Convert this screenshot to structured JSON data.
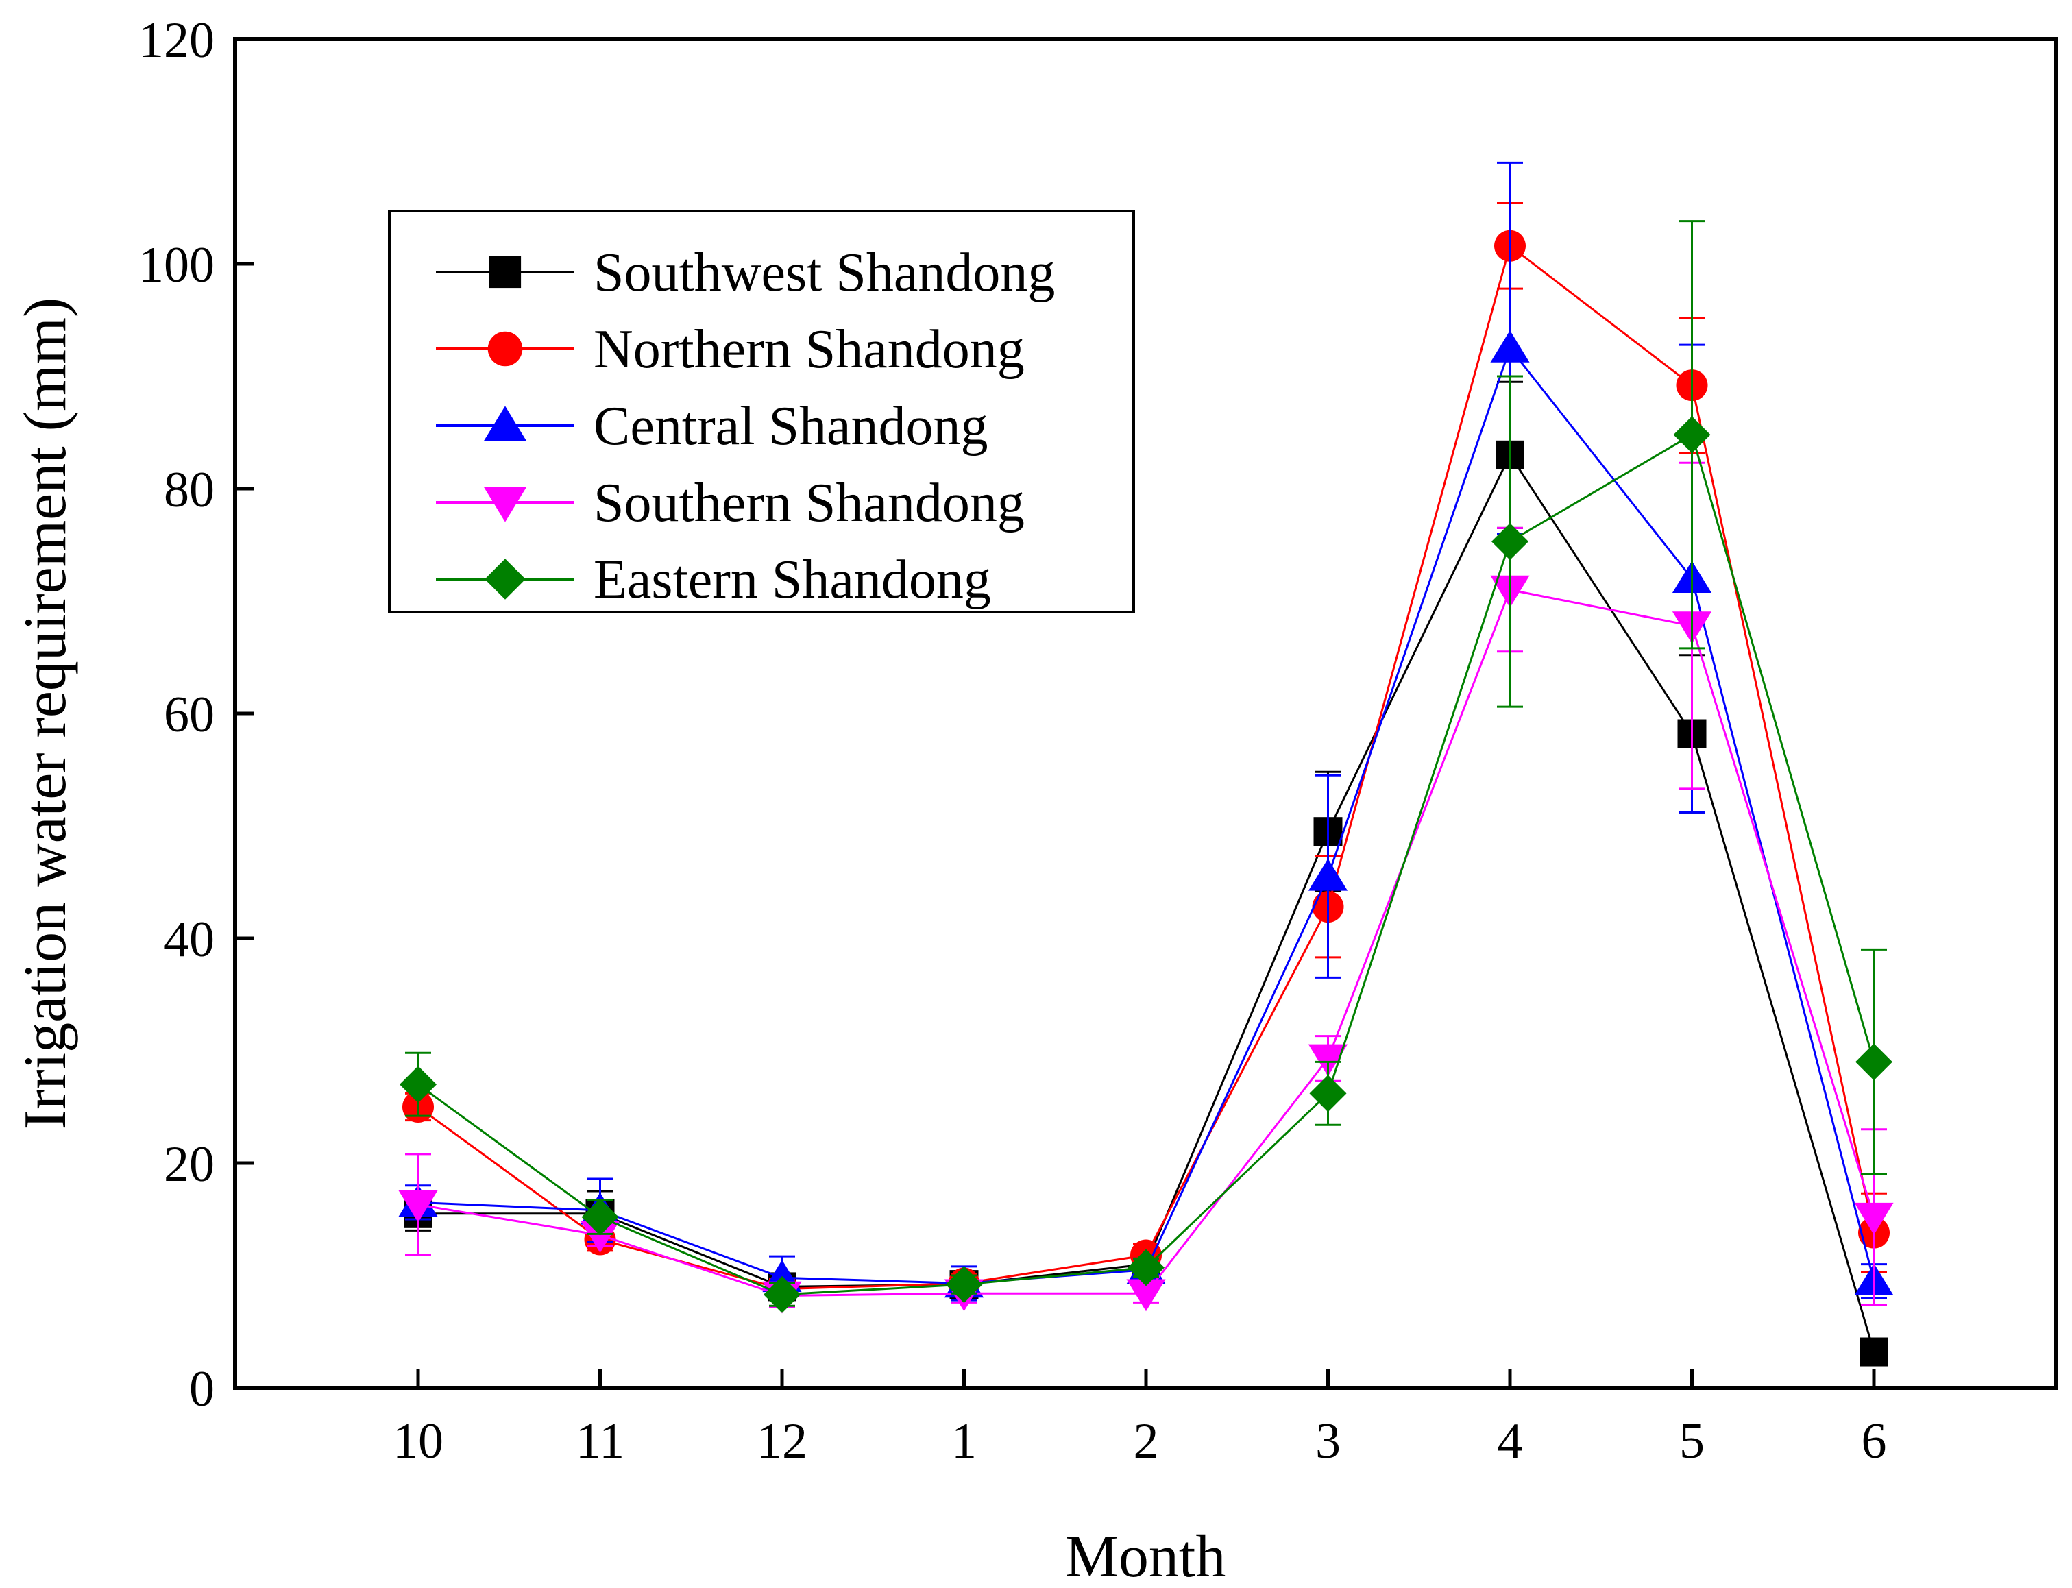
{
  "chart_data": {
    "type": "line",
    "title": "",
    "xlabel": "Month",
    "ylabel": "Irrigation water requirement (mm)",
    "categories": [
      "10",
      "11",
      "12",
      "1",
      "2",
      "3",
      "4",
      "5",
      "6"
    ],
    "ylim": [
      0,
      120
    ],
    "yticks": [
      "0",
      "20",
      "40",
      "60",
      "80",
      "100",
      "120"
    ],
    "grid": false,
    "legend_position": "top-left",
    "series": [
      {
        "name": "Southwest Shandong",
        "color": "#000000",
        "marker": "square",
        "values": [
          15.5,
          15.5,
          9.0,
          9.2,
          11.0,
          49.5,
          83.0,
          58.2,
          3.2
        ],
        "errors": [
          1.5,
          2.0,
          1.0,
          0.8,
          1.0,
          5.3,
          6.5,
          7.0,
          0.8
        ]
      },
      {
        "name": "Northern Shandong",
        "color": "#ff0000",
        "marker": "circle",
        "values": [
          25.0,
          13.2,
          8.8,
          9.3,
          11.8,
          42.8,
          101.6,
          89.2,
          13.8
        ],
        "errors": [
          1.2,
          1.0,
          0.9,
          0.8,
          1.0,
          4.5,
          3.8,
          6.0,
          3.5
        ]
      },
      {
        "name": "Central Shandong",
        "color": "#0000ff",
        "marker": "triangle-up",
        "values": [
          16.5,
          15.8,
          9.8,
          9.3,
          10.5,
          45.5,
          92.5,
          72.0,
          9.5
        ],
        "errors": [
          1.5,
          2.8,
          1.9,
          1.5,
          1.0,
          9.0,
          16.5,
          20.8,
          1.5
        ]
      },
      {
        "name": "Southern Shandong",
        "color": "#ff00ff",
        "marker": "triangle-down",
        "values": [
          16.3,
          13.6,
          8.2,
          8.4,
          8.4,
          29.3,
          71.0,
          67.8,
          15.2
        ],
        "errors": [
          4.5,
          1.0,
          1.0,
          0.8,
          0.8,
          2.0,
          5.5,
          14.5,
          7.8
        ]
      },
      {
        "name": "Eastern Shandong",
        "color": "#008000",
        "marker": "diamond",
        "values": [
          27.0,
          15.2,
          8.3,
          9.2,
          10.7,
          26.2,
          75.3,
          84.8,
          29.0
        ],
        "errors": [
          2.8,
          1.5,
          1.0,
          0.8,
          0.8,
          2.8,
          14.7,
          19.0,
          10.0
        ]
      }
    ]
  }
}
